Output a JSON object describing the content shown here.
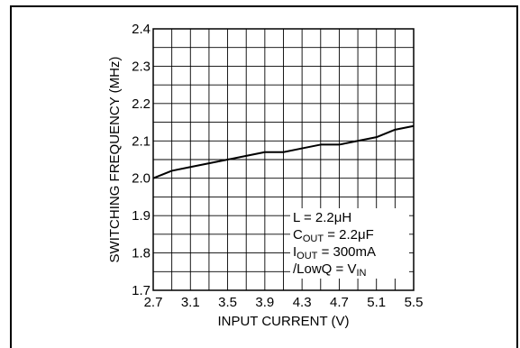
{
  "chart_data": {
    "type": "line",
    "xlabel": "INPUT CURRENT (V)",
    "ylabel": "SWITCHING FREQUENCY (MHz)",
    "xlim": [
      2.7,
      5.5
    ],
    "ylim": [
      1.7,
      2.4
    ],
    "x_ticks": [
      "2.7",
      "3.1",
      "3.5",
      "3.9",
      "4.3",
      "4.7",
      "5.1",
      "5.5"
    ],
    "y_ticks": [
      "1.7",
      "1.8",
      "1.9",
      "2.0",
      "2.1",
      "2.2",
      "2.3",
      "2.4"
    ],
    "grid": true,
    "series": [
      {
        "x": [
          2.7,
          2.9,
          3.1,
          3.3,
          3.5,
          3.7,
          3.9,
          4.1,
          4.3,
          4.5,
          4.7,
          4.9,
          5.1,
          5.3,
          5.5
        ],
        "y": [
          2.0,
          2.02,
          2.03,
          2.04,
          2.05,
          2.06,
          2.07,
          2.07,
          2.08,
          2.09,
          2.09,
          2.1,
          2.11,
          2.13,
          2.14
        ]
      }
    ],
    "annotations": [
      {
        "main": "L = 2.2μH",
        "sub": "",
        "tail": ""
      },
      {
        "main": "C",
        "sub": "OUT",
        "tail": " = 2.2μF"
      },
      {
        "main": "I",
        "sub": "OUT",
        "tail": " = 300mA"
      },
      {
        "main": "/LowQ = V",
        "sub": "IN",
        "tail": ""
      }
    ]
  }
}
